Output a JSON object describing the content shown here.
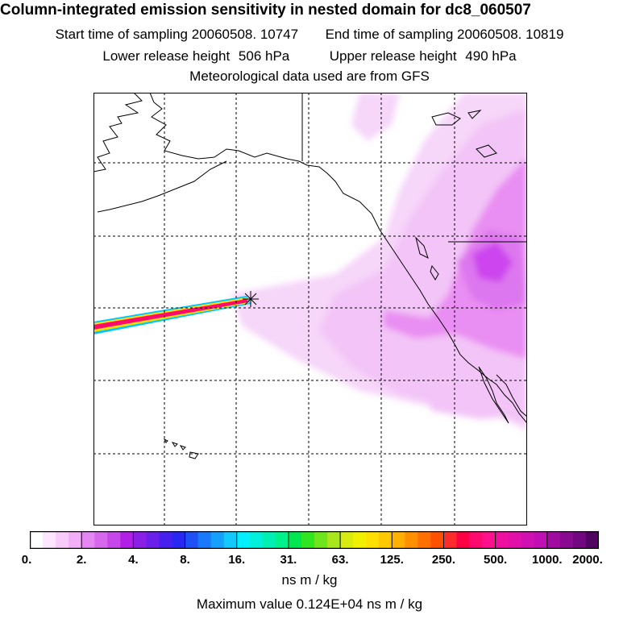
{
  "header": {
    "title": "Column-integrated emission sensitivity in nested domain for dc8_060507",
    "start_label": "Start time of sampling",
    "start_value": "20060508. 10747",
    "end_label": "End time of sampling",
    "end_value": "20060508. 10819",
    "lower_label": "Lower release height",
    "lower_value": "506 hPa",
    "upper_label": "Upper release height",
    "upper_value": "490 hPa",
    "met_line": "Meteorological data used are from GFS"
  },
  "colors": {
    "plume": "#ff1a8c",
    "sensitivity_light": "#f3c4f7",
    "sensitivity_mid": "#e98ef2",
    "sensitivity_dark": "#cc44ee",
    "coast": "#000000",
    "grid": "#000000"
  },
  "colorbar": {
    "units": "ns m / kg",
    "tick_labels": [
      "0.",
      "2.",
      "4.",
      "8.",
      "16.",
      "31.",
      "63.",
      "125.",
      "250.",
      "500.",
      "1000.",
      "2000."
    ],
    "colors": [
      "#ffffff",
      "#fde6fe",
      "#f8cbfb",
      "#f2aef7",
      "#e487f2",
      "#d668ee",
      "#c648ea",
      "#b020e6",
      "#8a20e6",
      "#6a20ea",
      "#4820ee",
      "#2828f2",
      "#1e50f6",
      "#1a78fa",
      "#16a0fc",
      "#12c8fe",
      "#00f0ff",
      "#00f0dc",
      "#00f0b4",
      "#00f08c",
      "#00e650",
      "#30e620",
      "#6ee61e",
      "#a8e61e",
      "#d8ec10",
      "#f0f000",
      "#ffe000",
      "#ffc800",
      "#ffb000",
      "#ff9000",
      "#ff7000",
      "#ff5000",
      "#ff2a2a",
      "#ff0044",
      "#ff0a6e",
      "#ff108c",
      "#f010a0",
      "#e010a8",
      "#d010b0",
      "#c010b4",
      "#a00ca0",
      "#880a90",
      "#700880",
      "#500660"
    ]
  },
  "max_value_text": "Maximum value  0.124E+04 ns m / kg"
}
